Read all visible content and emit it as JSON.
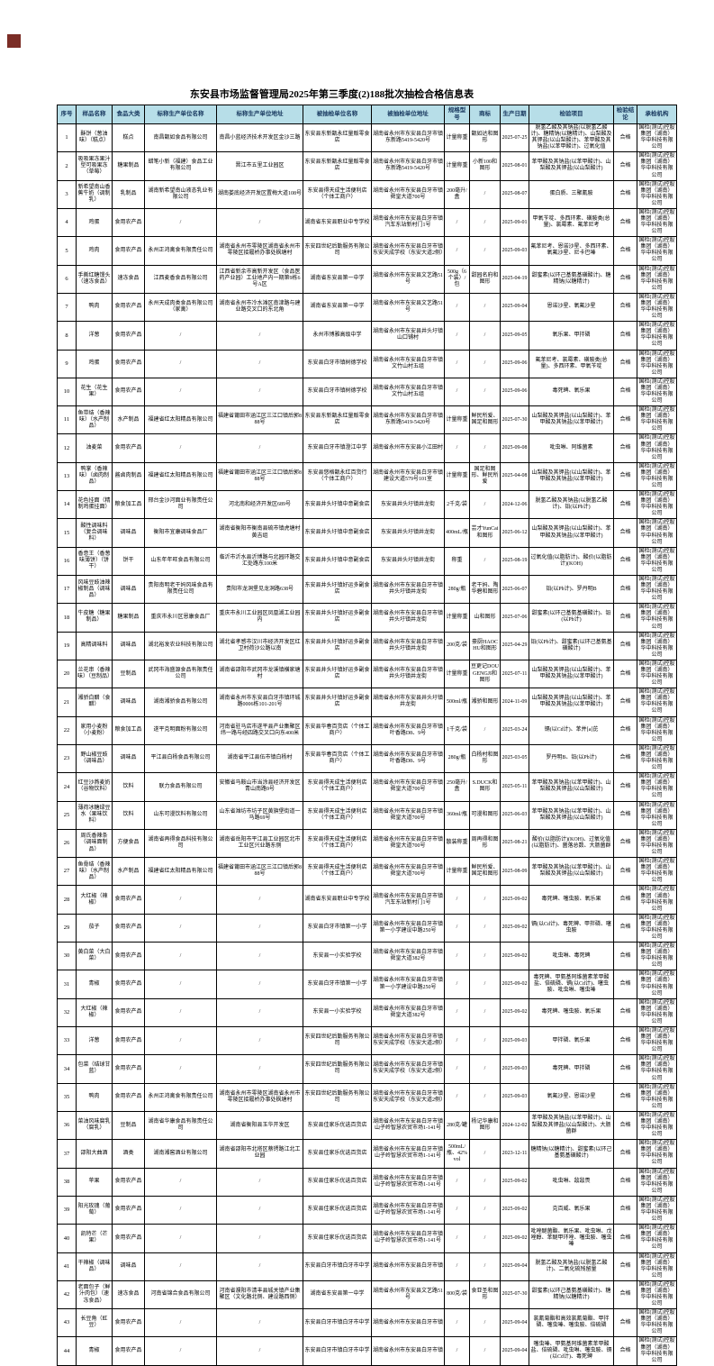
{
  "title": "东安县市场监督管理局2025年第三季度(2)188批次抽检合格信息表",
  "columns": [
    "序号",
    "样品名称",
    "食品大类",
    "标称生产单位名称",
    "标称生产单位地址",
    "被抽检单位名称",
    "被抽检单位地址",
    "规格型号",
    "商标",
    "生产日期",
    "检验项目",
    "检验结论",
    "承检机构"
  ],
  "common": {
    "result": "合格",
    "agency": "国检(测试)控股集团（湖南）华中科技有限公司"
  },
  "colors": {
    "header_bg": "#b7dee8",
    "header_text": "#17375e",
    "corner_marker": "#7b2d26",
    "border": "#000000"
  },
  "rows": [
    [
      "1",
      "酥饼（葱油味）（糕点）",
      "糕点",
      "南昌甑如食品有限公司",
      "南昌小蓝经济技术开发区金沙三路",
      "东安县东新甑永红量贩零食店",
      "湖南省永州市东安县白牙市镇东新路5419-5420号",
      "计量称重",
      "甑如达和图形",
      "2025-07-25",
      "脱氢乙酸及其钠盐(以脱氢乙酸计)、糖精钠(以糖精计)、山梨酸及其钾盐(以山梨酸计)、苯甲酸及其钠盐(以苯甲酸计)、过氧化值"
    ],
    [
      "2",
      "吸吸果冻果汁型可吸果冻（草莓）",
      "糖果制品",
      "蜡笔小新（福建）食品工业有限公司",
      "晋江市五里工业园区",
      "东安县东新甑永红量贩零食店",
      "湖南省永州市东安县白牙市镇东新路5419-5420号",
      "计量称重",
      "小新100和图形",
      "2025-08-01",
      "苯甲酸及其钠盐(以苯甲酸计)、山梨酸及其钾盐(以山梨酸计)"
    ],
    [
      "3",
      "新希望南山香蕉牛奶（调制乳）",
      "乳制品",
      "湖南新希望南山液态乳业有限公司",
      "湖南娄底经济开发区置梅大道108号",
      "东安县得天成生活便利店（个体工商户）",
      "湖南省永州市东安县白牙市镇舜皇大道700号",
      "200毫升/盒",
      "/",
      "2025-08-07",
      "蛋白质、三聚氰胺"
    ],
    [
      "4",
      "鸡蛋",
      "食用农产品",
      "/",
      "/",
      "湖南省东安县职业中专学校",
      "湖南省永州市东安县白牙市镇汽车东站新村门1号",
      "/",
      "/",
      "2025-09-01",
      "甲氧苄啶、多西环素、磺胺类(总量)、氯霉素、氟苯尼考"
    ],
    [
      "5",
      "鸡肉",
      "食用农产品",
      "永州正鸿禽食有限责任公司",
      "湖南省永州市零陵区湖南省永州市零陵区接履桥办事处枫塘村",
      "东安四世纪后勤服务有限公司",
      "湖南省永州市东安县白牙市镇东安天成学校（东安大道2侧）",
      "/",
      "/",
      "2025-09-03",
      "氟苯尼考、恩诺沙星、多西环素、氧氟沙星、尼卡巴嗪"
    ],
    [
      "6",
      "手撕红糖馒头（速冻食品）",
      "速冻食品",
      "江西麦香食品有限公司",
      "江西省新余市高新开发区（食品医药产业园）工业地产内一期第9栋6号A区",
      "湖南省东安县第一中学",
      "湖南省永州市东安县文艺路51号",
      "500g（6个装）/包",
      "甜园名府和图形",
      "2025-04-19",
      "甜蜜素(以环己基氨基磺酸计)、糖精钠(以糖精计)"
    ],
    [
      "7",
      "鸭肉",
      "食用农产品",
      "永州天成肉类食品有限公司（家禽）",
      "湖南省永州市冷水滩区南津路与建业路交叉口的东北角",
      "湖南省东安县第一中学",
      "湖南省永州市东安县文艺路51号",
      "/",
      "/",
      "2025-09-04",
      "恩诺沙星、氧氟沙星"
    ],
    [
      "8",
      "洋葱",
      "食用农产品",
      "/",
      "/",
      "永州市博雅高级中学",
      "湖南省永州市东安县井头圩镇山口铺村",
      "/",
      "/",
      "2025-09-05",
      "氧乐果、甲拌磷"
    ],
    [
      "9",
      "鸡蛋",
      "食用农产品",
      "/",
      "/",
      "东安县白牙市镇树德学校",
      "湖南省永州市东安县白牙市镇文竹山村五组",
      "/",
      "/",
      "2025-09-06",
      "氟苯尼考、氯霉素、磺胺类(总量)、多西环素、甲氧苄啶"
    ],
    [
      "10",
      "花生（花生果）",
      "食用农产品",
      "/",
      "/",
      "东安县白牙市镇树德学校",
      "湖南省永州市东安县白牙市镇文竹山村五组",
      "/",
      "/",
      "2025-09-06",
      "毒死蜱、氧乐果"
    ],
    [
      "11",
      "鱼带结（香辣味）（水产制品）",
      "水产制品",
      "福建省红太阳精品有限公司",
      "福建省莆田市涵江区三江口镇后郭888号",
      "东安县东新甑永红量贩零食店",
      "湖南省永州市东安县白牙市镇东新路5419-5420号",
      "计量称重",
      "鲜民所爱、国足和图形",
      "2025-07-30",
      "山梨酸及其钾盐(以山梨酸计)、苯甲酸及其钠盐(以苯甲酸计)"
    ],
    [
      "12",
      "油麦菜",
      "食用农产品",
      "/",
      "/",
      "东安县白牙市镇澄江中学",
      "湖南省永州市东安县小江田村",
      "/",
      "/",
      "2025-09-08",
      "吡虫啉、阿维菌素"
    ],
    [
      "13",
      "鸭掌（香辣味）（卤肉制品）",
      "酱卤肉制品",
      "福建省红太阳精品有限公司",
      "福建省莆田市涵江区三江口镇后郭888号",
      "东安县悠格甑永红百货行（个体工商户）",
      "湖南省永州市东安县白牙市镇建设大道579号101室",
      "计量称重",
      "国足和图形、鲜民所爱",
      "2025-04-08",
      "山梨酸及其钾盐(以山梨酸计)、苯甲酸及其钠盐(以苯甲酸计)"
    ],
    [
      "14",
      "花色挂面（精制鸡蛋挂面）",
      "粮食加工品",
      "邢台金沙河面业有限责任公司",
      "河北南和经济开发区689号",
      "东安县井头圩镇中意副食店",
      "东安县井头圩镇井龙街",
      "2千克/袋",
      "/",
      "2024-12-06",
      "脱氢乙酸及其钠盐(以脱氢乙酸计)、铅(以Pb计)"
    ],
    [
      "15",
      "酸性调味料（复合调味料）",
      "调味品",
      "衡阳市宜康调味食品厂",
      "湖南省衡阳市衡南县硫市镇虎塘村黄吉组",
      "东安县井头圩镇中意副食店",
      "东安县井头圩镇井龙街",
      "400mL/瓶",
      "芸才YunCai和图形",
      "2025-06-12",
      "山梨酸及其钾盐(以山梨酸计)、苯甲酸及其钠盐(以苯甲酸计)"
    ],
    [
      "16",
      "香意王（香葱味薄饼）（饼干）",
      "饼干",
      "山东年年旺食品有限公司",
      "临沂市沂水县沂博路与北园环路交汇处路东100米",
      "东安县井头圩镇中意副食店",
      "东安县井头圩镇井龙街",
      "称重",
      "/",
      "2025-08-19",
      "过氧化值(以脂肪计)、酸价(以脂肪计)(KOH)"
    ],
    [
      "17",
      "风味豆豉油辣椒制品（调味品）",
      "调味品",
      "贵阳南明老干妈风味食品有限责任公司",
      "贵阳市龙洞堡见龙洞路638号",
      "东安县井头圩镇好运多副食店",
      "湖南省永州市东安县白牙市镇井头圩镇井龙街",
      "280g/瓶",
      "老干妈、陶华碧和图形",
      "2025-06-07",
      "铅(以Pb计)、罗丹明B"
    ],
    [
      "18",
      "牛皮糖（糖果制品）",
      "糖果制品",
      "重庆市永川区恩康食品厂",
      "重庆市永川工业园区凤凰湖工业园内",
      "东安县井头圩镇好运多副食店",
      "湖南省永州市东安县白牙市镇井头圩镇井龙街",
      "计量称重",
      "山和图形",
      "2025-07-06",
      "甜蜜素(以环己基氨基磺酸计)、铅(以Pb计)"
    ],
    [
      "19",
      "高精调味料",
      "调味品",
      "湖北裕发农业科技有限公司",
      "湖北省孝感市汉川市经济开发区红卫村荷沙公路以南",
      "东安县井头圩镇好运多副食店",
      "湖南省永州市东安县白牙市镇井头圩镇井龙街",
      "200克/袋",
      "豪厨HAOCHU和图形",
      "2025-04-29",
      "铅(以Pb计)、甜蜜素(以环己基氨基磺酸计)"
    ],
    [
      "20",
      "兰花串（香辣味）（豆制品）",
      "豆制品",
      "武冈市海盛源食品有限责任公司",
      "湖南省邵阳市武冈市龙溪镇横家塘村",
      "东安县井头圩镇好运多副食店",
      "湖南省永州市东安县白牙市镇井头圩镇井龙街",
      "计量称重",
      "豆更记DOUGENGJI和图形",
      "2025-07-11",
      "山梨酸及其钾盐(以山梨酸计)、苯甲酸及其钠盐(以苯甲酸计)"
    ],
    [
      "21",
      "湘骄白醋（食醋）",
      "调味品",
      "湖南湘骄食品有限公司",
      "湖南省永州市东安县白牙市镇环城路0006栋101-201号",
      "东安县井头圩镇好运多副食店",
      "湖南省永州市东安县井头圩镇井龙街",
      "500ml/瓶",
      "湘骄和图形",
      "2024-11-09",
      "山梨酸及其钾盐(以山梨酸计)、苯甲酸及其钠盐(以苯甲酸计)"
    ],
    [
      "22",
      "家用小麦粉（小麦粉）",
      "粮食加工品",
      "遂平克明面粉有限公司",
      "河南省驻马店市遂平县产业集聚区纬一路与经四路交叉口向东400米",
      "东安县华春百货店（个体工商户）",
      "湖南省永州市东安县白牙市镇叶香路D8、9号",
      "1千克/袋",
      "/",
      "2025-03-24",
      "镉(以Cd计)、苯并[a]芘"
    ],
    [
      "23",
      "野山椒豆豉（调味品）",
      "调味品",
      "平江县白杨食品有限公司",
      "湖南省平江县伍市镇白杨村",
      "东安县华春百货店（个体工商户）",
      "湖南省永州市东安县白牙市镇叶香路D8、9号",
      "280g/瓶",
      "白杨村和图形",
      "2025-03-05",
      "罗丹明B、铅(以Pb计)"
    ],
    [
      "24",
      "红豆沙燕麦奶（谷物饮料）",
      "饮料",
      "联力食品有限公司",
      "安徽省马鞍山市当涂县经济开发区青山南路9号",
      "东安县得天成生活便利店（个体工商户）",
      "湖南省永州市东安县白牙市镇舜皇大道700号",
      "250毫升/盒",
      "S.DUCK和图形",
      "2025-05-11",
      "苯甲酸及其钠盐(以苯甲酸计)、山梨酸及其钾盐(以山梨酸计)"
    ],
    [
      "25",
      "薄荷冰糖绿豆水（果味饮料）",
      "饮料",
      "山东可漫饮料有限公司",
      "山东省潍坊市坊子区黄旗堡街道一马路69号",
      "东安县得天成生活便利店（个体工商户）",
      "湖南省永州市东安县白牙市镇舜皇大道700号",
      "360ml/瓶",
      "可漫和图形",
      "2025-06-03",
      "苯甲酸及其钠盐(以苯甲酸计)、山梨酸及其钾盐(以山梨酸计)"
    ],
    [
      "26",
      "周氏香辣条（调味面制品）",
      "方便食品",
      "湖南省再得食品科技有限公司",
      "湖南省岳阳市平江县工业园区北市工业区兴业路东侧",
      "东安县得天成生活便利店（个体工商户）",
      "湖南省永州市东安县白牙市镇舜皇大道700号",
      "散装称重",
      "周再得和图形",
      "2025-08-21",
      "酸价(以脂肪计)(KOH)、过氧化值(以脂肪计)、菌落总数、大肠菌群"
    ],
    [
      "27",
      "鱼骨结（香辣味）（水产制品）",
      "水产制品",
      "福建省红太阳精品有限公司",
      "福建省莆田市涵江区三江口镇后郭888号",
      "东安县得天成生活便利店（个体工商户）",
      "湖南省永州市东安县白牙市镇舜皇大道700号",
      "计量称重",
      "鲜民所爱、国足和图形",
      "2025-08-09",
      "苯甲酸及其钠盐(以苯甲酸计)、山梨酸及其钾盐(以山梨酸计)"
    ],
    [
      "28",
      "大红椒（辣椒）",
      "食用农产品",
      "/",
      "/",
      "湖南省东安县职业中专学校",
      "湖南省永州市东安县白牙市镇汽车东站新村门1号",
      "/",
      "/",
      "2025-09-02",
      "毒死蜱、噻虫胺、氧乐果"
    ],
    [
      "29",
      "茄子",
      "食用农产品",
      "/",
      "/",
      "东安县白牙市镇第一小学",
      "湖南省永州市东安县白牙市镇第一小学建设中路250号",
      "/",
      "/",
      "2025-09-02",
      "镉(以Cd计)、毒死蜱、甲拌磷、噻虫胺"
    ],
    [
      "30",
      "黄白菜（大白菜）",
      "食用农产品",
      "/",
      "/",
      "东安县一小实验学校",
      "湖南省永州市东安县白牙市镇舜皇大道382号",
      "/",
      "/",
      "2025-09-02",
      "吡虫啉、毒死蜱"
    ],
    [
      "31",
      "青椒",
      "食用农产品",
      "/",
      "/",
      "东安县白牙市镇第一小学",
      "湖南省永州市东安县白牙市镇第一小学建设中路250号",
      "/",
      "/",
      "2025-09-02",
      "毒死蜱、甲氨基阿维菌素苯甲酸盐、倍硫磷、镉(以Cd计)、噻虫胺、吡虫啉、噻虫嗪"
    ],
    [
      "32",
      "大红椒（辣椒）",
      "食用农产品",
      "/",
      "/",
      "东安县一小实验学校",
      "湖南省永州市东安县白牙市镇舜皇大道382号",
      "/",
      "/",
      "2025-09-02",
      "毒死蜱、噻虫胺、氧乐果"
    ],
    [
      "33",
      "洋葱",
      "食用农产品",
      "/",
      "/",
      "东安四世纪后勤服务有限公司",
      "湖南省永州市东安县白牙市镇东安天成学校（东安大道2侧）",
      "/",
      "/",
      "2025-09-03",
      "甲拌磷、氧乐果"
    ],
    [
      "34",
      "包菜（结球甘蓝）",
      "食用农产品",
      "/",
      "/",
      "东安四世纪后勤服务有限公司",
      "湖南省永州市东安县白牙市镇东安天成学校（东安大道2侧）",
      "/",
      "/",
      "2025-09-03",
      "毒死蜱、甲拌磷"
    ],
    [
      "35",
      "鸭肉",
      "食用农产品",
      "永州正鸿禽食有限责任公司",
      "湖南省永州市零陵区湖南省永州市零陵区接履桥办事处枫塘村",
      "东安四世纪后勤服务有限公司",
      "湖南省永州市东安县白牙市镇东安天成学校（东安大道2侧）",
      "/",
      "/",
      "2025-09-03",
      "氧氟沙星、恩诺沙星"
    ],
    [
      "36",
      "菜油风味腐乳（腐乳）",
      "豆制品",
      "湖南省华康食品有限责任公司",
      "湖南省衡阳县玉华开发区",
      "东安县佳家乐优选百货店",
      "湖南省永州市东安县白牙市镇山子岭智慧农贸市场1-141号",
      "280克/罐",
      "杨记华康和图形",
      "2024-12-02",
      "苯甲酸及其钠盐(以苯甲酸计)、山梨酸及其钾盐(以山梨酸计)、大肠菌群"
    ],
    [
      "37",
      "邵阳大曲酒",
      "酒类",
      "湖南湘窖酒业有限公司",
      "湖南省邵阳市北塔区蔡锷路江北工业园",
      "东安县佳家乐优选百货店",
      "湖南省永州市东安县白牙市镇山子岭智慧农贸市场1-141号",
      "500mL/瓶、42%vol",
      "/",
      "2023-12-11",
      "糖精钠(以糖精计)、甜蜜素(以环己基氨基磺酸计)"
    ],
    [
      "38",
      "苹果",
      "食用农产品",
      "/",
      "/",
      "东安县佳家乐优选百货店",
      "湖南省永州市东安县白牙市镇山子岭智慧农贸市场1-141号",
      "/",
      "/",
      "2025-09-02",
      "吡虫啉、敌敌畏"
    ],
    [
      "39",
      "阳光玫瑰（葡萄）",
      "食用农产品",
      "/",
      "/",
      "东安县佳家乐优选百货店",
      "湖南省永州市东安县白牙市镇山子岭智慧农贸市场1-141号",
      "/",
      "/",
      "2025-09-02",
      "克百威、氧乐果"
    ],
    [
      "40",
      "凯特芒（芒果）",
      "食用农产品",
      "/",
      "/",
      "东安县佳家乐优选百货店",
      "湖南省永州市东安县白牙市镇山子岭智慧农贸市场1-141号",
      "/",
      "/",
      "2025-09-02",
      "吡唑醚菌酯、氧乐果、吡虫啉、戊唑醇、苯醚甲环唑、噻虫胺、噻虫嗪"
    ],
    [
      "41",
      "干辣椒（调味品）",
      "调味品",
      "/",
      "/",
      "东安县白牙市镇白牙市中学",
      "湖南省永州市东安县白牙市镇",
      "/",
      "/",
      "2025-09-04",
      "脱氢乙酸及其钠盐(以脱氢乙酸计)、二氧化硫残留量"
    ],
    [
      "42",
      "老面包子（鲜汁肉包）（速冻食品）",
      "速冻食品",
      "河南省锦合食品有限公司",
      "河南省濮阳市清丰县城关镇产业集聚区（文化路北侧、建设路西侧）",
      "湖南省东安县第一中学",
      "湖南省永州市东安县文艺路51号",
      "800克/袋",
      "食亚圣和图形",
      "2025-07-30",
      "甜蜜素(以环己基氨基磺酸计)、糖精钠(以糖精计)"
    ],
    [
      "43",
      "长豆角（豇豆）",
      "食用农产品",
      "/",
      "/",
      "东安县白牙市镇白牙市中学",
      "湖南省永州市东安县白牙市镇",
      "/",
      "/",
      "2025-09-04",
      "氯氰菊酯和高效氯氰菊酯、甲拌磷、噻虫嗪、噻虫胺、倍硫磷"
    ],
    [
      "44",
      "青椒",
      "食用农产品",
      "/",
      "/",
      "东安县白牙市镇白牙市中学",
      "湖南省永州市东安县白牙市镇",
      "/",
      "/",
      "2025-09-04",
      "噻虫嗪、甲氨基阿维菌素苯甲酸盐、倍硫磷、吡虫啉、噻虫胺、镉(以Cd计)、毒死蜱"
    ]
  ]
}
